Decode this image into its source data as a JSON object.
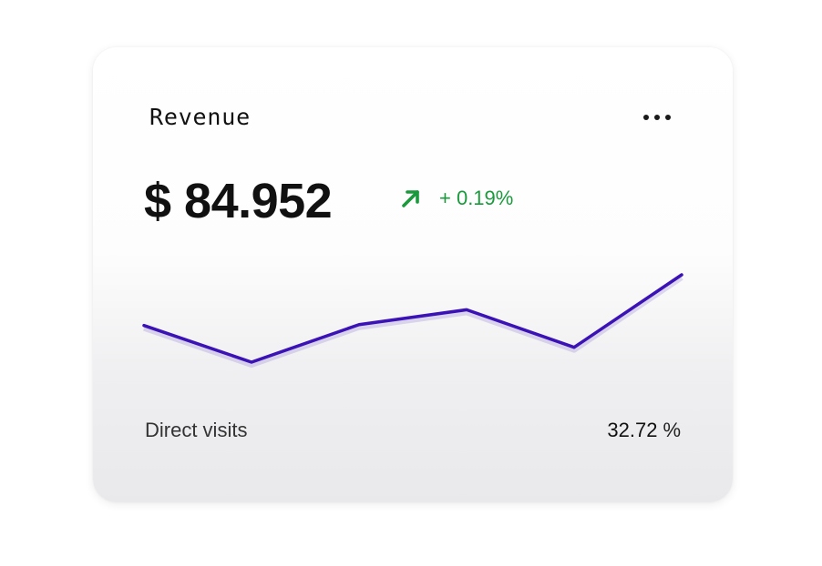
{
  "card": {
    "title": "Revenue",
    "menu_icon": "more-horizontal-icon",
    "amount": "$ 84.952",
    "change": {
      "icon": "arrow-up-right-icon",
      "text": "+ 0.19%",
      "color": "#1a9a3c"
    },
    "footer": {
      "label": "Direct visits",
      "value": "32.72",
      "unit": "%"
    }
  },
  "chart_data": {
    "type": "line",
    "line_color": "#3b12b5",
    "axes_visible": false,
    "x": [
      1,
      2,
      3,
      4,
      5,
      6
    ],
    "values": [
      42,
      0,
      43,
      60,
      17,
      100
    ],
    "ylim": [
      0,
      100
    ]
  }
}
